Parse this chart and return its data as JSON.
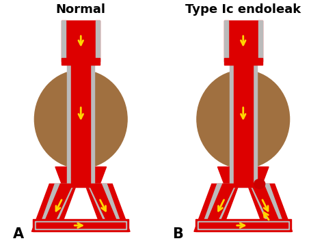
{
  "title_left": "Normal",
  "title_right": "Type Ic endoleak",
  "label_left": "A",
  "label_right": "B",
  "red_color": "#DD0000",
  "gray_color": "#BBBBBB",
  "brown_color": "#A07040",
  "yellow_color": "#FFD700",
  "white_color": "#FFFFFF",
  "background": "#FFFFFF",
  "title_fontsize": 13,
  "label_fontsize": 15
}
